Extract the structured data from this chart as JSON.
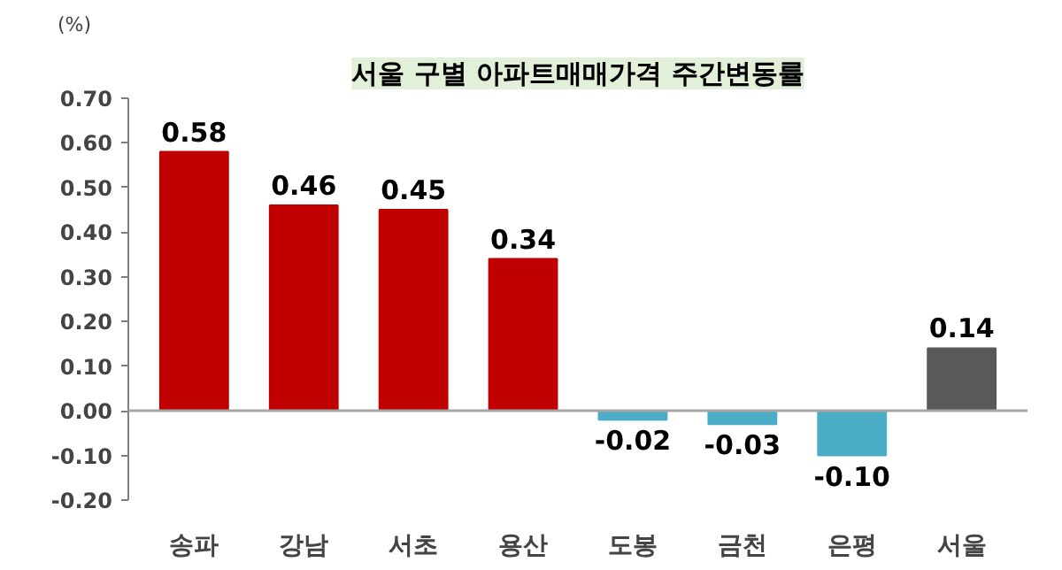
{
  "chart_data": {
    "type": "bar",
    "title": "서울 구별 아파트매매가격 주간변동률",
    "ylabel": "(%)",
    "categories": [
      "송파",
      "강남",
      "서초",
      "용산",
      "도봉",
      "금천",
      "은평",
      "서울"
    ],
    "values": [
      0.58,
      0.46,
      0.45,
      0.34,
      -0.02,
      -0.03,
      -0.1,
      0.14
    ],
    "colors": [
      "#c00000",
      "#c00000",
      "#c00000",
      "#c00000",
      "#4bacc6",
      "#4bacc6",
      "#4bacc6",
      "#595959"
    ],
    "value_labels": [
      "0.58",
      "0.46",
      "0.45",
      "0.34",
      "-0.02",
      "-0.03",
      "-0.10",
      "0.14"
    ],
    "ylim": [
      -0.2,
      0.7
    ],
    "yticks": [
      {
        "value": -0.2,
        "label": "-0.20"
      },
      {
        "value": -0.1,
        "label": "-0.10"
      },
      {
        "value": 0,
        "label": "0.00"
      },
      {
        "value": 0.1,
        "label": "0.10"
      },
      {
        "value": 0.2,
        "label": "0.20"
      },
      {
        "value": 0.3,
        "label": "0.30"
      },
      {
        "value": 0.4,
        "label": "0.40"
      },
      {
        "value": 0.5,
        "label": "0.50"
      },
      {
        "value": 0.6,
        "label": "0.60"
      },
      {
        "value": 0.7,
        "label": "0.70"
      }
    ],
    "ref_lines": [
      {
        "axis": "y",
        "value": 0,
        "color": "#a6a6a6"
      }
    ],
    "grid": false
  }
}
